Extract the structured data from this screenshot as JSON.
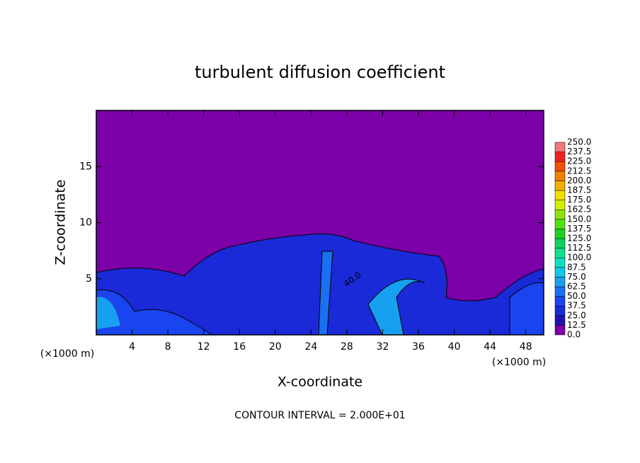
{
  "chart_data": {
    "type": "contour",
    "title": "turbulent diffusion coefficient",
    "x_label": "X-coordinate",
    "y_label": "Z-coordinate",
    "x_unit": "(×1000 m)",
    "x_unit_right": "(×1000 m)",
    "footer": "CONTOUR INTERVAL = 2.000E+01",
    "contour_label": "40.0",
    "xlim": [
      0,
      50
    ],
    "xticks": [
      4,
      8,
      12,
      16,
      20,
      24,
      28,
      32,
      36,
      40,
      44,
      48
    ],
    "ylim": [
      0,
      20
    ],
    "yticks": [
      5,
      10,
      15
    ],
    "colorbar": {
      "levels": [
        {
          "value": 0,
          "label": "0.0"
        },
        12.5,
        {
          "value": 25,
          "label": "25.0"
        },
        37.5,
        {
          "value": 50,
          "label": "50.0"
        },
        62.5,
        {
          "value": 75,
          "label": "75.0"
        },
        87.5,
        {
          "value": 100,
          "label": "100.0"
        },
        112.5,
        {
          "value": 125,
          "label": "125.0"
        },
        137.5,
        {
          "value": 150,
          "label": "150.0"
        },
        162.5,
        {
          "value": 175,
          "label": "175.0"
        },
        187.5,
        {
          "value": 200,
          "label": "200.0"
        },
        212.5,
        {
          "value": 225,
          "label": "225.0"
        },
        237.5,
        {
          "value": 250,
          "label": "250.0"
        }
      ],
      "colors": [
        "#7b00a8",
        "#2010b0",
        "#1a2ad8",
        "#1a44f0",
        "#1a70f0",
        "#18a0f0",
        "#10c8e8",
        "#10e0c0",
        "#10e090",
        "#10d060",
        "#20d020",
        "#50e010",
        "#90e010",
        "#d0f000",
        "#f0e000",
        "#f0b000",
        "#f08000",
        "#f05000",
        "#f02020",
        "#f07878"
      ]
    }
  }
}
